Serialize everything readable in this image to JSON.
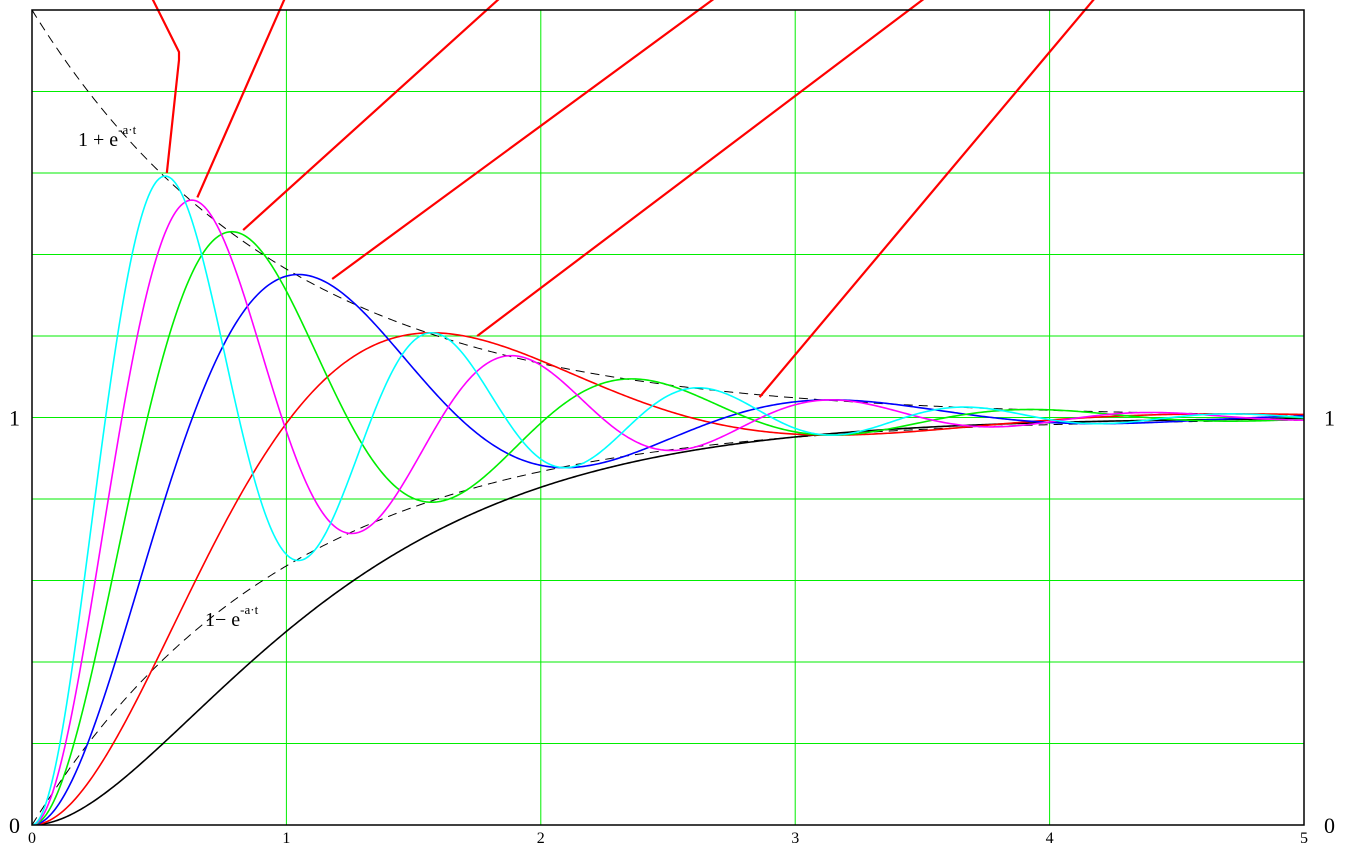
{
  "chart_data": {
    "type": "line",
    "title": "",
    "xlabel": "",
    "ylabel": "",
    "xlim": [
      0,
      5
    ],
    "ylim": [
      0,
      2
    ],
    "grid": true,
    "grid_color": "#00ee00",
    "x_grid_step": 1,
    "y_grid_step": 0.2,
    "x_ticks": [
      0,
      1,
      2,
      3,
      4,
      5
    ],
    "x_tick_labels": [
      "0",
      "1",
      "2",
      "3",
      "4",
      "5"
    ],
    "y_ticks_left": [
      0,
      1
    ],
    "y_tick_labels_left": [
      "0",
      "1"
    ],
    "y_ticks_right": [
      0,
      1
    ],
    "y_tick_labels_right": [
      "0",
      "1"
    ],
    "annotations": [
      {
        "base": "1 + e",
        "exponent": "-a·t",
        "x": 0.2,
        "y": 1.67
      },
      {
        "base": "1− e",
        "exponent": "-a·t",
        "x": 0.67,
        "y": 0.48
      }
    ],
    "series": [
      {
        "color": "#000000",
        "style": "dashed",
        "kind": "envelope-upper",
        "decay": 1.01
      },
      {
        "color": "#000000",
        "style": "dashed",
        "kind": "envelope-lower",
        "decay": 1.01
      },
      {
        "color": "#000000",
        "style": "solid",
        "kind": "critical",
        "rate": 1.6
      },
      {
        "color": "#ff0000",
        "style": "solid",
        "kind": "damped",
        "omega": 2.0,
        "peak_x": 1.57,
        "peak_y": 1.21
      },
      {
        "color": "#0000ff",
        "style": "solid",
        "kind": "damped",
        "omega": 3.0,
        "peak_x": 1.05,
        "peak_y": 1.35
      },
      {
        "color": "#00ee00",
        "style": "solid",
        "kind": "damped",
        "omega": 4.0,
        "peak_x": 0.79,
        "peak_y": 1.45
      },
      {
        "color": "#ff00ff",
        "style": "solid",
        "kind": "damped",
        "omega": 5.0,
        "peak_x": 0.63,
        "peak_y": 1.53
      },
      {
        "color": "#00ffff",
        "style": "solid",
        "kind": "damped",
        "omega": 6.0,
        "peak_x": 0.52,
        "peak_y": 1.59
      }
    ],
    "leader_lines": [
      {
        "color": "#ff0000",
        "target_x": 0.53,
        "target_y": 1.6
      },
      {
        "color": "#ff0000",
        "target_x": 0.65,
        "target_y": 1.54
      },
      {
        "color": "#ff0000",
        "target_x": 0.83,
        "target_y": 1.46
      },
      {
        "color": "#ff0000",
        "target_x": 1.18,
        "target_y": 1.34
      },
      {
        "color": "#ff0000",
        "target_x": 1.75,
        "target_y": 1.2
      },
      {
        "color": "#ff0000",
        "target_x": 2.86,
        "target_y": 1.05
      }
    ]
  }
}
